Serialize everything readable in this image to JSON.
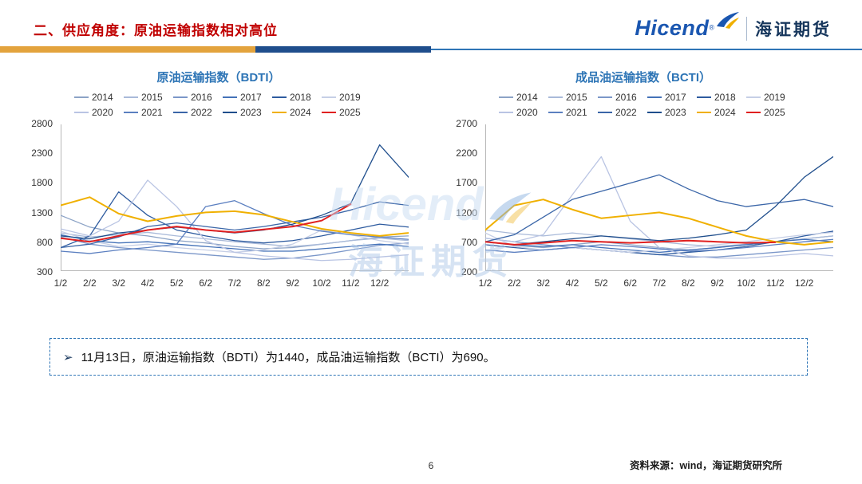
{
  "header": {
    "title": "二、供应角度：原油运输指数相对高位"
  },
  "logo": {
    "en": "Hicend",
    "registered": "®",
    "cn": "海证期货"
  },
  "watermark": {
    "en": "Hicend",
    "cn": "海证期货"
  },
  "note": {
    "bullet": "➢",
    "text": "11月13日，原油运输指数（BDTI）为1440，成品油运输指数（BCTI）为690。"
  },
  "footer": {
    "page": "6",
    "source": "资料来源：wind，海证期货研究所"
  },
  "accent_colors": {
    "title_red": "#C00000",
    "gold": "#E3A33D",
    "navy": "#1F4E8C",
    "blue": "#2E75B6"
  },
  "chart_data": [
    {
      "type": "line",
      "title": "原油运输指数（BDTI）",
      "ylim": [
        300,
        2800
      ],
      "yticks": [
        300,
        800,
        1300,
        1800,
        2300,
        2800
      ],
      "xticklabels": [
        "1/2",
        "2/2",
        "3/2",
        "4/2",
        "5/2",
        "6/2",
        "7/2",
        "8/2",
        "9/2",
        "10/2",
        "11/2",
        "12/2"
      ],
      "grid": false,
      "legend_position": "top",
      "series": [
        {
          "name": "2014",
          "color": "#8CA3C6",
          "values": [
            1250,
            1050,
            950,
            900,
            820,
            780,
            720,
            680,
            700,
            760,
            820,
            880,
            900
          ]
        },
        {
          "name": "2015",
          "color": "#A9BAD9",
          "values": [
            950,
            880,
            920,
            960,
            900,
            850,
            800,
            760,
            720,
            760,
            820,
            860,
            820
          ]
        },
        {
          "name": "2016",
          "color": "#7B97C9",
          "values": [
            880,
            760,
            700,
            660,
            620,
            580,
            540,
            500,
            520,
            580,
            660,
            740,
            780
          ]
        },
        {
          "name": "2017",
          "color": "#4472B8",
          "values": [
            920,
            820,
            780,
            800,
            760,
            720,
            680,
            640,
            640,
            680,
            720,
            760,
            720
          ]
        },
        {
          "name": "2018",
          "color": "#2E5B9F",
          "values": [
            700,
            900,
            1650,
            1250,
            1000,
            900,
            820,
            780,
            820,
            900,
            1000,
            1100,
            1050
          ]
        },
        {
          "name": "2019",
          "color": "#C6CFE6",
          "values": [
            980,
            820,
            720,
            760,
            700,
            660,
            620,
            660,
            760,
            1000,
            920,
            820,
            760
          ]
        },
        {
          "name": "2020",
          "color": "#B9C4E3",
          "values": [
            1020,
            900,
            1150,
            1850,
            1400,
            820,
            620,
            560,
            520,
            480,
            500,
            540,
            580
          ]
        },
        {
          "name": "2021",
          "color": "#5B7FC0",
          "values": [
            640,
            600,
            660,
            700,
            760,
            1400,
            1500,
            1280,
            1080,
            980,
            920,
            880,
            840
          ]
        },
        {
          "name": "2022",
          "color": "#3B66A8",
          "values": [
            700,
            760,
            880,
            1060,
            1120,
            1060,
            1000,
            1060,
            1140,
            1220,
            1340,
            1480,
            1420
          ]
        },
        {
          "name": "2023",
          "color": "#1F4E8C",
          "values": [
            900,
            850,
            950,
            1000,
            1050,
            1000,
            950,
            1000,
            1100,
            1250,
            1450,
            2450,
            1900
          ]
        },
        {
          "name": "2024",
          "color": "#F0B000",
          "width": 2,
          "values": [
            1420,
            1560,
            1280,
            1150,
            1240,
            1300,
            1320,
            1260,
            1140,
            1020,
            950,
            900,
            950
          ]
        },
        {
          "name": "2025",
          "color": "#E02020",
          "width": 2,
          "values": [
            860,
            800,
            900,
            1000,
            1060,
            1000,
            960,
            1010,
            1060,
            1160,
            1440
          ]
        }
      ]
    },
    {
      "type": "line",
      "title": "成品油运输指数（BCTI）",
      "ylim": [
        200,
        2700
      ],
      "yticks": [
        200,
        700,
        1200,
        1700,
        2200,
        2700
      ],
      "xticklabels": [
        "1/2",
        "2/2",
        "3/2",
        "4/2",
        "5/2",
        "6/2",
        "7/2",
        "8/2",
        "9/2",
        "10/2",
        "11/2",
        "12/2"
      ],
      "grid": false,
      "legend_position": "top",
      "series": [
        {
          "name": "2014",
          "color": "#8CA3C6",
          "values": [
            700,
            640,
            600,
            650,
            700,
            650,
            600,
            560,
            600,
            650,
            700,
            750,
            800
          ]
        },
        {
          "name": "2015",
          "color": "#A9BAD9",
          "values": [
            900,
            840,
            800,
            850,
            800,
            750,
            700,
            650,
            620,
            660,
            700,
            750,
            800
          ]
        },
        {
          "name": "2016",
          "color": "#7B97C9",
          "values": [
            760,
            700,
            650,
            600,
            560,
            520,
            480,
            440,
            440,
            480,
            520,
            560,
            600
          ]
        },
        {
          "name": "2017",
          "color": "#4472B8",
          "values": [
            700,
            650,
            620,
            650,
            600,
            560,
            520,
            560,
            600,
            650,
            700,
            740,
            700
          ]
        },
        {
          "name": "2018",
          "color": "#2E5B9F",
          "values": [
            650,
            600,
            560,
            600,
            560,
            520,
            480,
            520,
            560,
            620,
            700,
            800,
            880
          ]
        },
        {
          "name": "2019",
          "color": "#C6CFE6",
          "values": [
            850,
            620,
            560,
            600,
            560,
            520,
            560,
            600,
            650,
            700,
            760,
            820,
            860
          ]
        },
        {
          "name": "2020",
          "color": "#B9C4E3",
          "values": [
            760,
            700,
            820,
            1500,
            2150,
            1050,
            600,
            460,
            420,
            420,
            460,
            500,
            460
          ]
        },
        {
          "name": "2021",
          "color": "#5B7FC0",
          "values": [
            560,
            520,
            560,
            600,
            650,
            620,
            580,
            540,
            560,
            600,
            650,
            700,
            740
          ]
        },
        {
          "name": "2022",
          "color": "#3B66A8",
          "values": [
            700,
            820,
            1120,
            1420,
            1560,
            1700,
            1840,
            1600,
            1400,
            1300,
            1360,
            1420,
            1300
          ]
        },
        {
          "name": "2023",
          "color": "#1F4E8C",
          "values": [
            700,
            650,
            700,
            750,
            800,
            760,
            720,
            760,
            820,
            900,
            1300,
            1800,
            2150
          ]
        },
        {
          "name": "2024",
          "color": "#F0B000",
          "width": 2,
          "values": [
            900,
            1320,
            1420,
            1250,
            1100,
            1150,
            1200,
            1100,
            950,
            800,
            700,
            650,
            700
          ]
        },
        {
          "name": "2025",
          "color": "#E02020",
          "width": 2,
          "values": [
            700,
            650,
            680,
            720,
            700,
            680,
            700,
            720,
            700,
            680,
            690
          ]
        }
      ]
    }
  ]
}
